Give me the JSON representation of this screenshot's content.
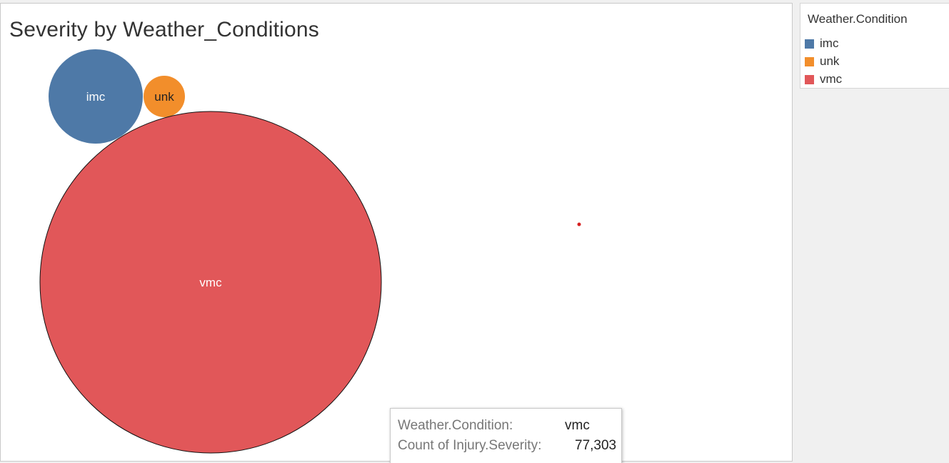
{
  "chart_data": {
    "type": "bubble",
    "title": "Severity by Weather_Conditions",
    "categories": [
      "imc",
      "unk",
      "vmc"
    ],
    "measure": "Count of Injury.Severity",
    "series": [
      {
        "name": "imc",
        "color": "#4e79a7",
        "label_color": "#ffffff"
      },
      {
        "name": "unk",
        "color": "#f28e2b",
        "label_color": "#222222"
      },
      {
        "name": "vmc",
        "color": "#e15759",
        "label_color": "#ffffff"
      }
    ]
  },
  "legend": {
    "title": "Weather.Condition",
    "items": [
      {
        "label": "imc",
        "color": "#4e79a7"
      },
      {
        "label": "unk",
        "color": "#f28e2b"
      },
      {
        "label": "vmc",
        "color": "#e15759"
      }
    ]
  },
  "tooltip": {
    "row1_key": "Weather.Condition:",
    "row1_value": "vmc",
    "row2_key": "Count of Injury.Severity:",
    "row2_value": "77,303"
  }
}
